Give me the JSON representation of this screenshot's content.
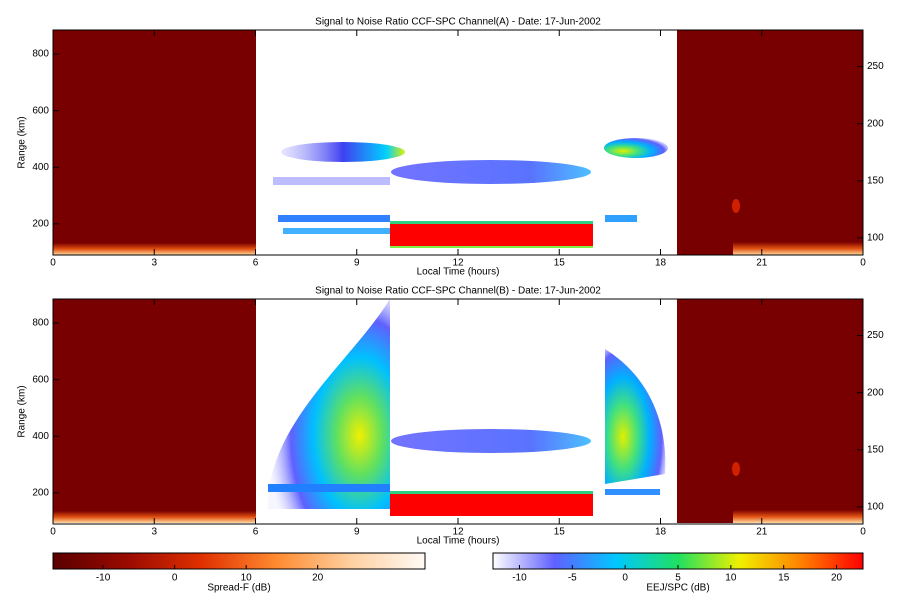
{
  "chart_data": [
    {
      "type": "heatmap",
      "title": "Signal to Noise Ratio CCF-SPC Channel(A) - Date: 17-Jun-2002",
      "xlabel": "Local Time (hours)",
      "ylabel": "Range (km)",
      "xlim": [
        0,
        24
      ],
      "xticks": [
        0,
        3,
        6,
        9,
        12,
        15,
        18,
        21,
        {
          "value": 24,
          "label": "0"
        }
      ],
      "ylim": [
        90,
        885
      ],
      "yticks": [
        200,
        400,
        600,
        800
      ],
      "y2lim": [
        85,
        282
      ],
      "y2ticks": [
        100,
        150,
        200,
        250
      ]
    },
    {
      "type": "heatmap",
      "title": "Signal to Noise Ratio CCF-SPC Channel(B) - Date: 17-Jun-2002",
      "xlabel": "Local Time (hours)",
      "ylabel": "Range (km)",
      "xlim": [
        0,
        24
      ],
      "xticks": [
        0,
        3,
        6,
        9,
        12,
        15,
        18,
        21,
        {
          "value": 24,
          "label": "0"
        }
      ],
      "ylim": [
        90,
        885
      ],
      "yticks": [
        200,
        400,
        600,
        800
      ],
      "y2lim": [
        85,
        282
      ],
      "y2ticks": [
        100,
        150,
        200,
        250
      ]
    }
  ],
  "colorbars": [
    {
      "label": "Spread-F (dB)",
      "lim": [
        -17,
        35
      ],
      "ticks": [
        -10,
        0,
        10,
        20
      ],
      "colors": [
        "#5a0000",
        "#9a0a00",
        "#e03000",
        "#ff8a30",
        "#ffd0a0",
        "#fffaf5"
      ]
    },
    {
      "label": "EEJ/SPC (dB)",
      "lim": [
        -12.5,
        22.5
      ],
      "ticks": [
        -10,
        -5,
        0,
        5,
        10,
        15,
        20
      ],
      "colors": [
        "#ffffff",
        "#6060ff",
        "#00c8ff",
        "#20e060",
        "#f0f000",
        "#ff8000",
        "#ff0000"
      ]
    }
  ]
}
